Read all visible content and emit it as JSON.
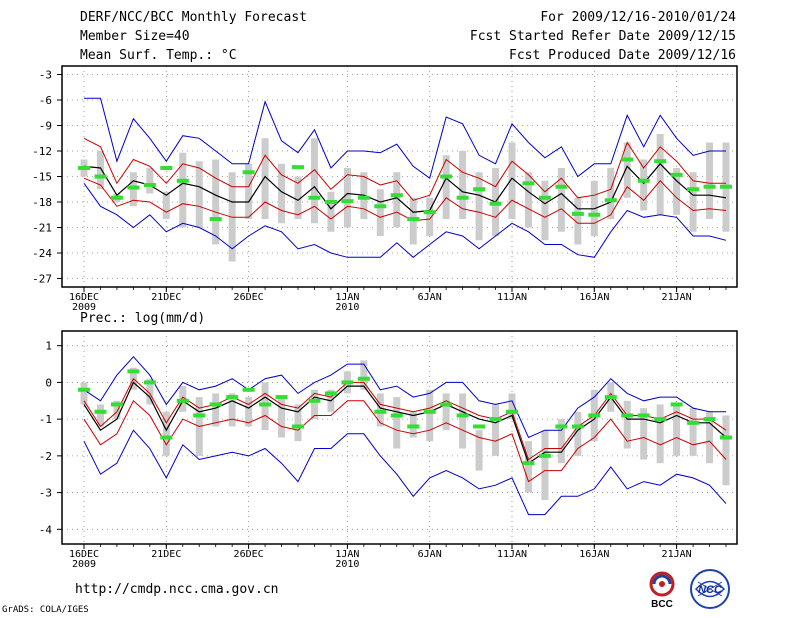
{
  "header": {
    "title": "DERF/NCC/BCC Monthly Forecast",
    "member_size": "Member Size=40",
    "variable": "Mean Surf. Temp.: °C",
    "forecast_period": "For 2009/12/16-2010/01/24",
    "started_refer": "Fcst Started Refer Date 2009/12/15",
    "produced": "Fcst Produced Date 2009/12/16"
  },
  "footer": {
    "url": "http://cmdp.ncc.cma.gov.cn",
    "grads": "GrADS: COLA/IGES",
    "logo_bcc": "BCC",
    "logo_ncc": "NCC"
  },
  "colors": {
    "envelope": "#0000cc",
    "spread": "#cc0000",
    "mean": "#000000",
    "box": "#cccccc",
    "marker": "#33dd33"
  },
  "chart_data": [
    {
      "type": "line",
      "title": "Mean Surf. Temp.: °C",
      "xlabel": "",
      "ylabel": "°C",
      "ylim": [
        -28,
        -2
      ],
      "yticks": [
        "-3",
        "-6",
        "-9",
        "-12",
        "-15",
        "-18",
        "-21",
        "-24",
        "-27"
      ],
      "ytick_values": [
        -3,
        -6,
        -9,
        -12,
        -15,
        -18,
        -21,
        -24,
        -27
      ],
      "xticks": [
        {
          "day": 1,
          "label": "16DEC",
          "sub": "2009"
        },
        {
          "day": 6,
          "label": "21DEC",
          "sub": ""
        },
        {
          "day": 11,
          "label": "26DEC",
          "sub": ""
        },
        {
          "day": 17,
          "label": "1JAN",
          "sub": "2010"
        },
        {
          "day": 22,
          "label": "6JAN",
          "sub": ""
        },
        {
          "day": 27,
          "label": "11JAN",
          "sub": ""
        },
        {
          "day": 32,
          "label": "16JAN",
          "sub": ""
        },
        {
          "day": 37,
          "label": "21JAN",
          "sub": ""
        }
      ],
      "days": [
        1,
        2,
        3,
        4,
        5,
        6,
        7,
        8,
        9,
        10,
        11,
        12,
        13,
        14,
        15,
        16,
        17,
        18,
        19,
        20,
        21,
        22,
        23,
        24,
        25,
        26,
        27,
        28,
        29,
        30,
        31,
        32,
        33,
        34,
        35,
        36,
        37,
        38,
        39,
        40
      ],
      "series": [
        {
          "name": "max",
          "values": [
            -5.8,
            -5.8,
            -13.2,
            -8.2,
            -10.5,
            -13.2,
            -10.2,
            -10.5,
            -12.0,
            -13.5,
            -13.5,
            -6.2,
            -10.8,
            -12.2,
            -9.5,
            -14.0,
            -12.0,
            -12.0,
            -12.2,
            -11.2,
            -13.8,
            -15.2,
            -8.0,
            -8.8,
            -12.5,
            -13.5,
            -8.8,
            -11.0,
            -12.8,
            -11.5,
            -15.0,
            -13.5,
            -13.5,
            -7.8,
            -11.5,
            -7.8,
            -10.5,
            -12.5,
            -12.0,
            -12.0
          ]
        },
        {
          "name": "p75",
          "values": [
            -10.5,
            -11.5,
            -15.8,
            -13.0,
            -13.8,
            -15.8,
            -13.5,
            -14.0,
            -15.2,
            -16.2,
            -16.2,
            -12.5,
            -14.8,
            -15.8,
            -14.2,
            -16.5,
            -14.8,
            -15.0,
            -16.0,
            -15.5,
            -17.8,
            -17.2,
            -13.0,
            -14.5,
            -15.2,
            -16.2,
            -13.2,
            -14.8,
            -16.8,
            -15.2,
            -17.5,
            -17.2,
            -16.5,
            -11.0,
            -14.0,
            -11.5,
            -13.2,
            -15.5,
            -15.8,
            -15.8
          ]
        },
        {
          "name": "mean",
          "values": [
            -13.8,
            -14.0,
            -17.2,
            -15.5,
            -16.0,
            -17.2,
            -15.8,
            -16.2,
            -17.2,
            -18.0,
            -18.0,
            -15.0,
            -16.8,
            -17.8,
            -16.2,
            -18.8,
            -17.0,
            -17.2,
            -18.0,
            -17.5,
            -19.2,
            -19.0,
            -15.2,
            -16.8,
            -17.2,
            -18.0,
            -15.2,
            -16.8,
            -18.2,
            -17.0,
            -18.8,
            -18.8,
            -18.0,
            -13.8,
            -15.8,
            -13.5,
            -15.5,
            -17.2,
            -17.2,
            -17.5
          ]
        },
        {
          "name": "p25",
          "values": [
            -15.2,
            -16.0,
            -18.5,
            -17.8,
            -18.0,
            -19.2,
            -18.2,
            -18.5,
            -19.2,
            -19.8,
            -19.8,
            -18.0,
            -19.0,
            -19.5,
            -18.5,
            -20.0,
            -18.5,
            -18.8,
            -19.8,
            -19.2,
            -20.2,
            -20.0,
            -17.5,
            -18.8,
            -19.2,
            -19.8,
            -17.8,
            -18.8,
            -19.8,
            -18.8,
            -20.5,
            -20.5,
            -19.5,
            -16.2,
            -17.8,
            -15.5,
            -17.5,
            -19.0,
            -18.8,
            -19.0
          ]
        },
        {
          "name": "min",
          "values": [
            -15.8,
            -18.5,
            -19.5,
            -21.0,
            -19.5,
            -21.5,
            -20.5,
            -21.0,
            -22.0,
            -23.5,
            -22.0,
            -20.8,
            -21.5,
            -23.5,
            -23.0,
            -24.0,
            -24.5,
            -24.5,
            -24.5,
            -22.8,
            -24.5,
            -23.0,
            -21.5,
            -22.0,
            -23.5,
            -22.0,
            -20.5,
            -21.5,
            -23.0,
            -23.0,
            -24.2,
            -24.5,
            -21.5,
            -19.0,
            -19.8,
            -19.5,
            -19.8,
            -22.0,
            -22.0,
            -22.5
          ]
        },
        {
          "name": "box_top",
          "values": [
            -13.0,
            -12.0,
            -17.0,
            -14.5,
            -14.0,
            -16.8,
            -12.2,
            -13.2,
            -13.0,
            -14.5,
            -13.5,
            -10.5,
            -13.5,
            -15.0,
            -10.5,
            -16.8,
            -14.0,
            -14.5,
            -16.5,
            -14.5,
            -17.5,
            -17.5,
            -12.5,
            -12.0,
            -14.5,
            -14.0,
            -11.0,
            -14.5,
            -15.5,
            -14.0,
            -17.5,
            -15.5,
            -14.0,
            -11.0,
            -13.0,
            -10.0,
            -14.0,
            -14.5,
            -11.0,
            -11.0
          ]
        },
        {
          "name": "box_bottom",
          "values": [
            -15.0,
            -16.5,
            -18.0,
            -18.5,
            -17.0,
            -20.0,
            -21.0,
            -21.0,
            -23.0,
            -25.0,
            -20.0,
            -20.0,
            -20.5,
            -20.0,
            -20.5,
            -21.5,
            -21.0,
            -20.0,
            -22.0,
            -21.0,
            -23.0,
            -22.0,
            -20.0,
            -20.0,
            -22.5,
            -22.0,
            -20.0,
            -21.0,
            -22.5,
            -21.5,
            -23.0,
            -22.0,
            -20.0,
            -17.5,
            -19.0,
            -19.5,
            -19.5,
            -21.5,
            -20.0,
            -21.5
          ]
        },
        {
          "name": "obs_marker",
          "values": [
            -14.0,
            -15.0,
            -17.5,
            -16.3,
            -16.0,
            -14.0,
            -15.5,
            null,
            -20.0,
            null,
            -14.5,
            null,
            null,
            -13.9,
            -17.5,
            -18.0,
            -17.9,
            -17.5,
            -18.5,
            -17.2,
            -20.0,
            -19.2,
            -15.0,
            -17.5,
            -16.5,
            -18.2,
            null,
            -15.8,
            -17.5,
            -16.2,
            -19.4,
            -19.5,
            -17.8,
            -13.0,
            -15.5,
            -13.2,
            -14.8,
            -16.5,
            -16.2,
            -16.2
          ]
        }
      ]
    },
    {
      "type": "line",
      "title": "Prec.: log(mm/d)",
      "xlabel": "",
      "ylabel": "log(mm/d)",
      "ylim": [
        -4.4,
        1.4
      ],
      "yticks": [
        "1",
        "0",
        "-1",
        "-2",
        "-3",
        "-4"
      ],
      "ytick_values": [
        1,
        0,
        -1,
        -2,
        -3,
        -4
      ],
      "xticks": [
        {
          "day": 1,
          "label": "16DEC",
          "sub": "2009"
        },
        {
          "day": 6,
          "label": "21DEC",
          "sub": ""
        },
        {
          "day": 11,
          "label": "26DEC",
          "sub": ""
        },
        {
          "day": 17,
          "label": "1JAN",
          "sub": "2010"
        },
        {
          "day": 22,
          "label": "6JAN",
          "sub": ""
        },
        {
          "day": 27,
          "label": "11JAN",
          "sub": ""
        },
        {
          "day": 32,
          "label": "16JAN",
          "sub": ""
        },
        {
          "day": 37,
          "label": "21JAN",
          "sub": ""
        }
      ],
      "days": [
        1,
        2,
        3,
        4,
        5,
        6,
        7,
        8,
        9,
        10,
        11,
        12,
        13,
        14,
        15,
        16,
        17,
        18,
        19,
        20,
        21,
        22,
        23,
        24,
        25,
        26,
        27,
        28,
        29,
        30,
        31,
        32,
        33,
        34,
        35,
        36,
        37,
        38,
        39,
        40
      ],
      "series": [
        {
          "name": "max",
          "values": [
            -0.2,
            -0.5,
            0.2,
            0.7,
            0.2,
            -0.6,
            0.0,
            -0.2,
            -0.1,
            0.1,
            -0.2,
            0.1,
            0.2,
            -0.3,
            0.0,
            0.2,
            0.5,
            0.5,
            -0.2,
            -0.1,
            -0.4,
            -0.3,
            0.0,
            0.0,
            -0.5,
            -0.6,
            -0.5,
            -1.5,
            -1.3,
            -1.3,
            -0.7,
            -0.4,
            0.1,
            -0.3,
            -0.5,
            -0.4,
            -0.4,
            -0.7,
            -0.8,
            -0.8
          ]
        },
        {
          "name": "p75",
          "values": [
            -0.5,
            -1.2,
            -0.8,
            0.1,
            -0.3,
            -1.1,
            -0.4,
            -0.7,
            -0.6,
            -0.4,
            -0.6,
            -0.3,
            -0.6,
            -0.7,
            -0.3,
            -0.4,
            0.0,
            0.0,
            -0.6,
            -0.7,
            -0.8,
            -0.7,
            -0.5,
            -0.7,
            -0.9,
            -1.0,
            -0.8,
            -2.1,
            -1.8,
            -1.8,
            -1.2,
            -0.9,
            -0.3,
            -0.9,
            -0.9,
            -1.0,
            -0.8,
            -1.0,
            -1.0,
            -1.3
          ]
        },
        {
          "name": "mean",
          "values": [
            -0.6,
            -1.3,
            -1.0,
            0.0,
            -0.4,
            -1.3,
            -0.5,
            -0.8,
            -0.7,
            -0.5,
            -0.7,
            -0.4,
            -0.7,
            -0.8,
            -0.4,
            -0.5,
            -0.1,
            -0.1,
            -0.7,
            -0.8,
            -0.9,
            -0.8,
            -0.6,
            -0.8,
            -1.0,
            -1.1,
            -0.9,
            -2.2,
            -1.9,
            -1.9,
            -1.3,
            -1.0,
            -0.4,
            -1.0,
            -1.0,
            -1.1,
            -0.9,
            -1.1,
            -1.1,
            -1.5
          ]
        },
        {
          "name": "p25",
          "values": [
            -1.0,
            -1.7,
            -1.4,
            -0.5,
            -0.9,
            -1.7,
            -1.0,
            -1.2,
            -1.1,
            -1.0,
            -1.1,
            -0.9,
            -1.2,
            -1.3,
            -0.9,
            -0.9,
            -0.5,
            -0.5,
            -1.1,
            -1.3,
            -1.4,
            -1.3,
            -1.1,
            -1.3,
            -1.5,
            -1.6,
            -1.4,
            -2.7,
            -2.4,
            -2.4,
            -1.8,
            -1.5,
            -1.0,
            -1.6,
            -1.5,
            -1.7,
            -1.5,
            -1.7,
            -1.6,
            -2.1
          ]
        },
        {
          "name": "min",
          "values": [
            -1.6,
            -2.5,
            -2.2,
            -1.3,
            -1.8,
            -2.6,
            -1.7,
            -2.1,
            -2.0,
            -1.9,
            -2.0,
            -1.8,
            -2.2,
            -2.7,
            -1.8,
            -1.8,
            -1.4,
            -1.4,
            -2.0,
            -2.5,
            -3.1,
            -2.6,
            -2.4,
            -2.6,
            -2.9,
            -2.8,
            -2.6,
            -3.6,
            -3.6,
            -3.1,
            -3.1,
            -2.9,
            -2.3,
            -2.9,
            -2.7,
            -2.8,
            -2.5,
            -2.6,
            -2.8,
            -3.3
          ]
        },
        {
          "name": "box_top",
          "values": [
            0.0,
            -0.6,
            -0.5,
            0.4,
            0.1,
            -0.8,
            -0.1,
            -0.4,
            -0.3,
            -0.3,
            -0.4,
            0.0,
            -0.4,
            -0.6,
            -0.2,
            -0.2,
            0.3,
            0.6,
            -0.3,
            -0.4,
            -0.8,
            -0.2,
            -0.3,
            -0.3,
            -1.3,
            -0.6,
            -0.3,
            -1.6,
            -1.3,
            -1.0,
            -0.8,
            -0.2,
            0.0,
            -0.5,
            -0.7,
            -0.6,
            -0.6,
            -0.7,
            -0.8,
            -0.9
          ]
        },
        {
          "name": "box_bottom",
          "values": [
            -0.6,
            -1.2,
            -1.0,
            -0.2,
            -0.6,
            -2.0,
            -0.8,
            -2.0,
            -1.2,
            -1.2,
            -1.2,
            -1.3,
            -1.5,
            -1.6,
            -1.0,
            -0.8,
            -0.3,
            -0.2,
            -1.2,
            -1.8,
            -1.5,
            -1.6,
            -1.3,
            -1.8,
            -2.4,
            -2.0,
            -1.0,
            -3.0,
            -3.2,
            -2.2,
            -2.0,
            -1.6,
            -0.8,
            -1.8,
            -2.1,
            -2.2,
            -2.0,
            -2.0,
            -2.2,
            -2.8
          ]
        },
        {
          "name": "obs_marker",
          "values": [
            -0.2,
            -0.8,
            -0.6,
            0.3,
            0.0,
            -1.5,
            -0.5,
            -0.9,
            -0.6,
            -0.4,
            -0.2,
            -0.6,
            -0.4,
            -1.2,
            -0.5,
            -0.3,
            0.0,
            0.1,
            -0.8,
            -0.9,
            -1.2,
            -0.8,
            -0.6,
            -0.9,
            -1.2,
            -1.0,
            -0.8,
            -2.2,
            -2.0,
            -1.2,
            -1.2,
            -0.9,
            -0.4,
            -0.9,
            -0.9,
            -1.0,
            -0.6,
            -1.1,
            -1.0,
            -1.5
          ]
        }
      ]
    }
  ]
}
